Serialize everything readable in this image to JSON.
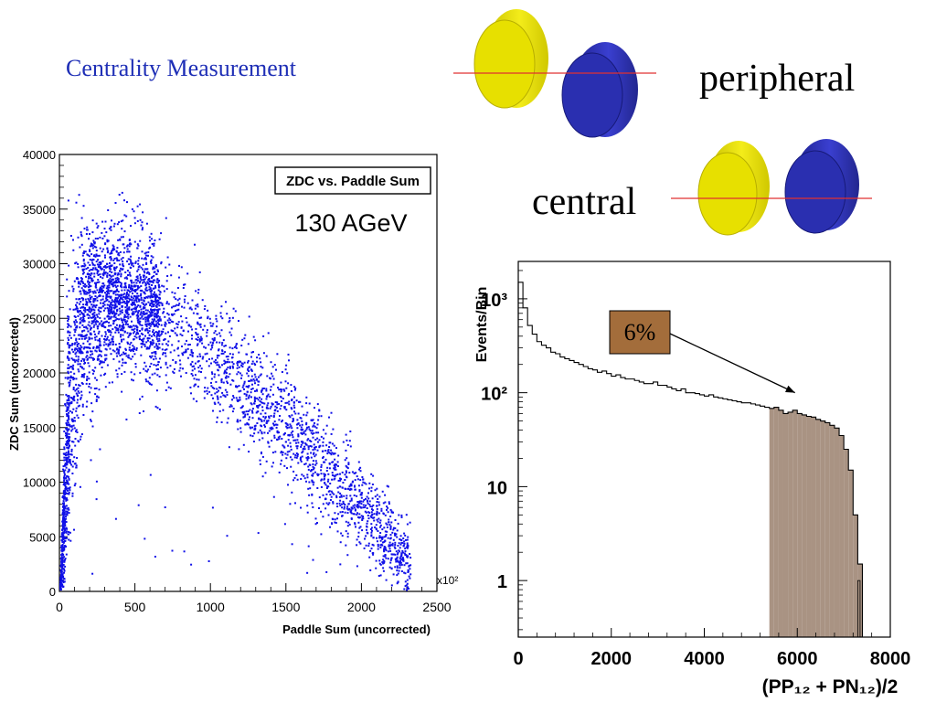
{
  "slide": {
    "title": "Centrality Measurement",
    "peripheral_label": "peripheral",
    "central_label": "central"
  },
  "colors": {
    "title": "#1f2fb6",
    "scatter_points": "#1010e8",
    "nucleus_yellow": "#e7e000",
    "nucleus_blue": "#2a2fb0",
    "beam_line": "#e03030",
    "histogram_fill": "#a99383",
    "annotation_fill": "#a36d3b"
  },
  "chart_data": [
    {
      "type": "scatter",
      "title": "ZDC vs. Paddle Sum",
      "subtitle": "130 AGeV",
      "xlabel": "Paddle Sum (uncorrected)",
      "ylabel": "ZDC Sum (uncorrected)",
      "x_multiplier_label": "x10²",
      "xlim": [
        0,
        2500
      ],
      "ylim": [
        0,
        40000
      ],
      "xticks": [
        0,
        500,
        1000,
        1500,
        2000,
        2500
      ],
      "yticks": [
        0,
        5000,
        10000,
        15000,
        20000,
        25000,
        30000,
        35000,
        40000
      ],
      "trend": {
        "x": [
          0,
          50,
          150,
          300,
          500,
          800,
          1000,
          1200,
          1500,
          1700,
          1900,
          2100,
          2300
        ],
        "y": [
          0,
          15000,
          25500,
          27500,
          26500,
          24000,
          21500,
          19000,
          15500,
          12000,
          9000,
          6000,
          3000
        ]
      },
      "spread": {
        "x": [
          0,
          50,
          150,
          300,
          500,
          800,
          1000,
          1200,
          1500,
          1700,
          1900,
          2100,
          2300
        ],
        "y": [
          300,
          6000,
          4300,
          3500,
          3200,
          2800,
          2600,
          2500,
          2400,
          2400,
          2300,
          2000,
          1700
        ]
      },
      "grid": false
    },
    {
      "type": "histogram",
      "xlabel": "(PP₁₂ + PN₁₂)/2",
      "ylabel": "Events/Bin",
      "yscale": "log",
      "xlim": [
        0,
        8000
      ],
      "ylim": [
        0.25,
        2500
      ],
      "xticks": [
        0,
        2000,
        4000,
        6000,
        8000
      ],
      "yticks": [
        1,
        10,
        100,
        1000
      ],
      "ytick_labels": [
        "1",
        "10",
        "10²",
        "10³"
      ],
      "bin_width": 100,
      "bins_start": 0,
      "values": [
        1500,
        800,
        520,
        420,
        350,
        320,
        300,
        270,
        260,
        240,
        230,
        220,
        210,
        200,
        190,
        180,
        175,
        165,
        170,
        160,
        150,
        155,
        145,
        140,
        140,
        135,
        130,
        125,
        125,
        130,
        120,
        120,
        115,
        110,
        105,
        110,
        100,
        100,
        98,
        95,
        92,
        95,
        90,
        88,
        86,
        84,
        82,
        80,
        78,
        78,
        76,
        74,
        72,
        70,
        68,
        70,
        65,
        60,
        62,
        65,
        60,
        58,
        56,
        55,
        52,
        50,
        48,
        45,
        42,
        35,
        25,
        15,
        5,
        1.5,
        0,
        0
      ],
      "shaded_from": 5400,
      "annotation": {
        "text": "6%",
        "target_x": 5950,
        "target_y": 100
      },
      "grid": false
    }
  ]
}
